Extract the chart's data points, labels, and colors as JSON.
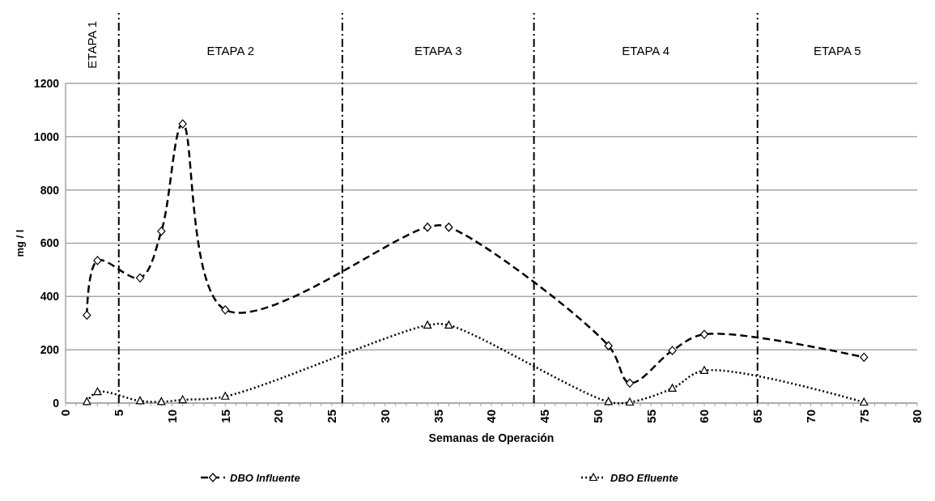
{
  "chart_data": {
    "type": "line",
    "xlabel": "Semanas de Operación",
    "ylabel": "mg / l",
    "xlim": [
      0,
      80
    ],
    "xticks": [
      0,
      5,
      10,
      15,
      20,
      25,
      30,
      35,
      40,
      45,
      50,
      55,
      60,
      65,
      70,
      75,
      80
    ],
    "ylim": [
      0,
      1200
    ],
    "yticks": [
      0,
      200,
      400,
      600,
      800,
      1000,
      1200
    ],
    "grid": "y",
    "legend": "bottom",
    "series": [
      {
        "name": "DBO Influente",
        "color": "#000000",
        "marker": "diamond",
        "line_style": "dashed",
        "x": [
          2,
          3,
          7,
          9,
          11,
          15,
          34,
          36,
          51,
          53,
          57,
          60,
          75
        ],
        "values": [
          330,
          535,
          470,
          645,
          1048,
          350,
          660,
          660,
          215,
          75,
          197,
          258,
          172
        ]
      },
      {
        "name": "DBO Efluente",
        "color": "#000000",
        "marker": "triangle",
        "line_style": "dotted",
        "x": [
          2,
          3,
          7,
          9,
          11,
          15,
          34,
          36,
          51,
          53,
          57,
          60,
          75
        ],
        "values": [
          5,
          42,
          8,
          5,
          12,
          25,
          292,
          292,
          5,
          3,
          55,
          122,
          3
        ]
      }
    ],
    "ref_lines": [
      {
        "axis": "x",
        "value": 5,
        "line_style": "dashdot"
      },
      {
        "axis": "x",
        "value": 26,
        "line_style": "dashdot"
      },
      {
        "axis": "x",
        "value": 44,
        "line_style": "dashdot"
      },
      {
        "axis": "x",
        "value": 65,
        "line_style": "dashdot"
      }
    ],
    "annotations": [
      "ETAPA 1",
      "ETAPA 2",
      "ETAPA 3",
      "ETAPA 4",
      "ETAPA 5"
    ]
  }
}
